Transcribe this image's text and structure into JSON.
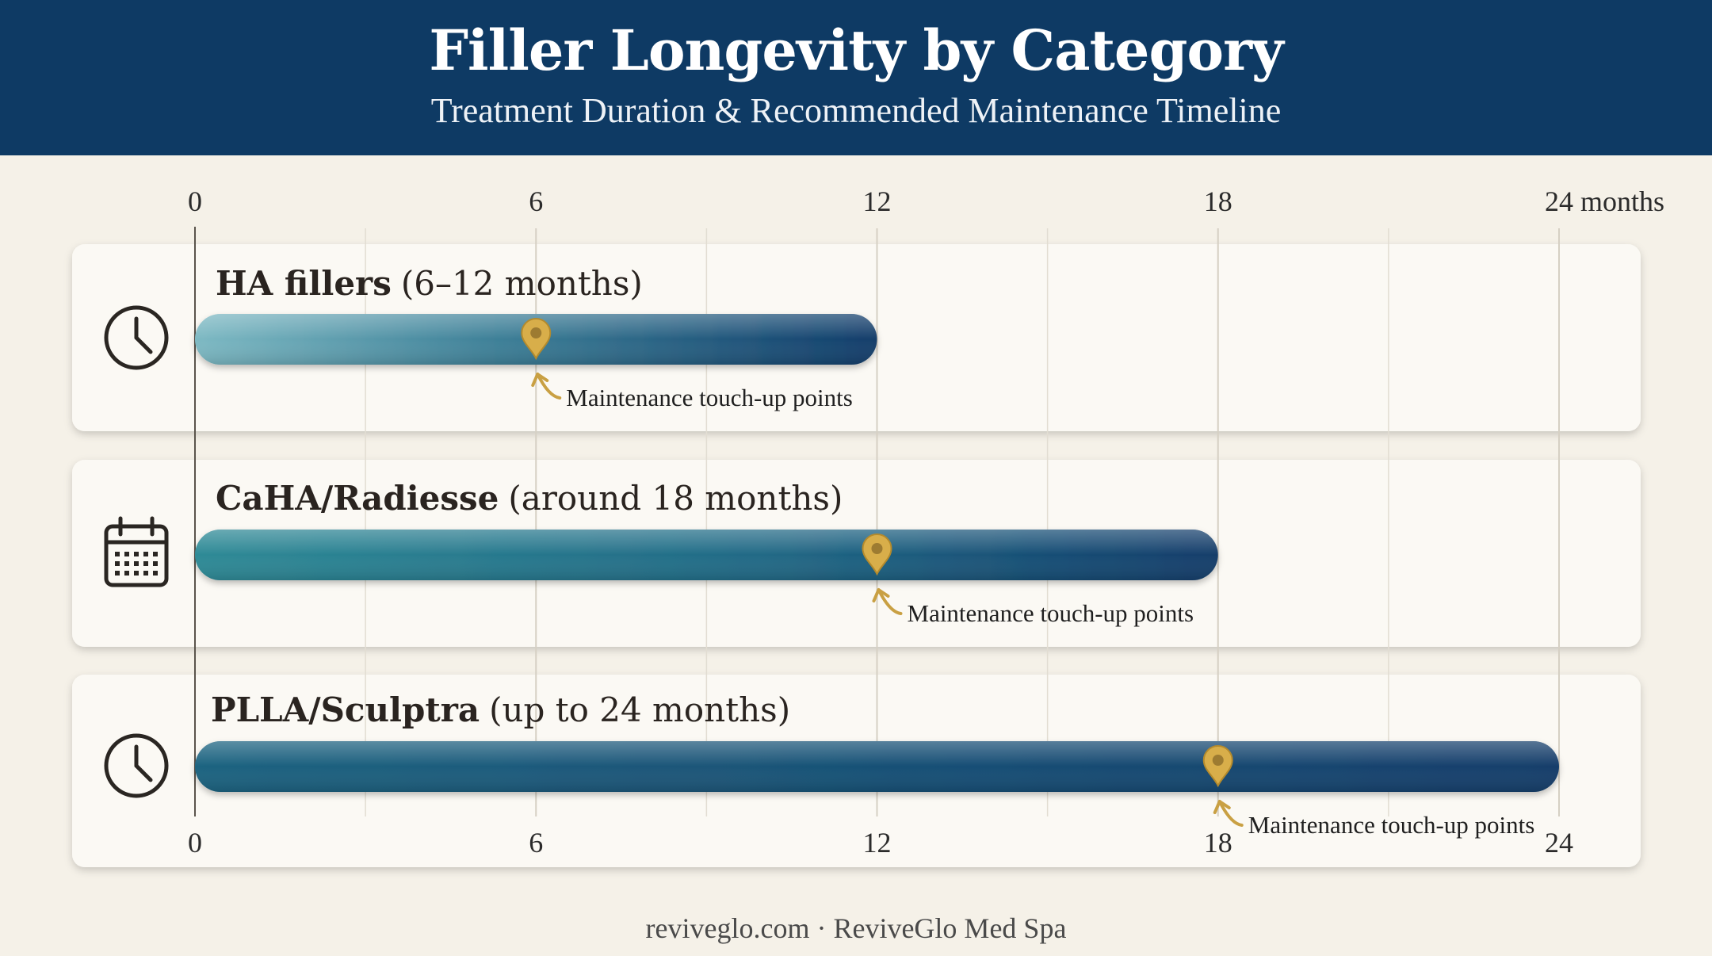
{
  "header": {
    "title": "Filler Longevity by Category",
    "subtitle": "Treatment Duration & Recommended Maintenance Timeline"
  },
  "footer": {
    "text": "reviveglo.com · ReviveGlo Med Spa"
  },
  "colors": {
    "header_bg": "#0e3a64",
    "bar_dark": "#123e6b",
    "bar_light": "#7db9c3",
    "bar_mid": "#2f8a96",
    "marker": "#d8ae4a",
    "card_bg": "#fbf9f4"
  },
  "chart_data": {
    "type": "bar",
    "orientation": "horizontal",
    "title": "Filler Longevity by Category",
    "subtitle": "Treatment Duration & Recommended Maintenance Timeline",
    "xlim": [
      0,
      24
    ],
    "x_ticks_top": [
      "0",
      "6",
      "12",
      "18",
      "24 months"
    ],
    "x_ticks_bottom": [
      "0",
      "6",
      "12",
      "18",
      "24"
    ],
    "grid": true,
    "categories": [
      {
        "title_bold": "HA fillers",
        "title_rest": "(6–12 months)",
        "icon": "clock-icon",
        "start": 0,
        "end": 12,
        "touchup": 6,
        "annotation": "Maintenance touch-up points"
      },
      {
        "title_bold": "CaHA/Radiesse",
        "title_rest": "(around 18 months)",
        "icon": "calendar-icon",
        "start": 0,
        "end": 18,
        "touchup": 12,
        "annotation": "Maintenance touch-up points"
      },
      {
        "title_bold": "PLLA/Sculptra",
        "title_rest": "(up to 24 months)",
        "icon": "clock-icon",
        "start": 0,
        "end": 24,
        "touchup": 18,
        "annotation": "Maintenance touch-up points"
      }
    ]
  }
}
